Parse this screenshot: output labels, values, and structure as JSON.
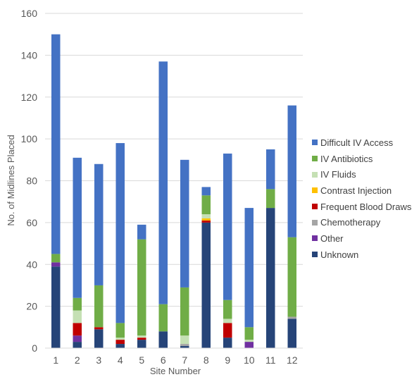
{
  "chart_data": {
    "type": "bar",
    "stacked": true,
    "title": "",
    "xlabel": "Site Number",
    "ylabel": "No. of Midlines Placed",
    "ylim": [
      0,
      160
    ],
    "yticks": [
      0,
      20,
      40,
      60,
      80,
      100,
      120,
      140,
      160
    ],
    "grid": true,
    "legend_position": "right",
    "categories": [
      "1",
      "2",
      "3",
      "4",
      "5",
      "6",
      "7",
      "8",
      "9",
      "10",
      "11",
      "12"
    ],
    "series": [
      {
        "name": "Unknown",
        "color": "#264478",
        "values": [
          39,
          3,
          9,
          2,
          4,
          8,
          1,
          60,
          5,
          0,
          67,
          14
        ]
      },
      {
        "name": "Other",
        "color": "#7030a0",
        "values": [
          2,
          3,
          0,
          0,
          0,
          0,
          0,
          0,
          0,
          3,
          0,
          0
        ]
      },
      {
        "name": "Chemotherapy",
        "color": "#a5a5a5",
        "values": [
          0,
          0,
          0,
          0,
          0,
          0,
          1,
          0,
          0,
          0,
          0,
          1
        ]
      },
      {
        "name": "Frequent Blood Draws",
        "color": "#c00000",
        "values": [
          0,
          6,
          1,
          2,
          1,
          0,
          0,
          1,
          7,
          0,
          0,
          0
        ]
      },
      {
        "name": "Contrast Injection",
        "color": "#ffc000",
        "values": [
          0,
          0,
          0,
          0,
          0,
          0,
          0,
          1,
          0,
          0,
          0,
          0
        ]
      },
      {
        "name": "IV Fluids",
        "color": "#c5e0b4",
        "values": [
          0,
          6,
          0,
          1,
          1,
          0,
          4,
          2,
          2,
          1,
          0,
          0
        ]
      },
      {
        "name": "IV Antibiotics",
        "color": "#70ad47",
        "values": [
          4,
          6,
          20,
          7,
          46,
          13,
          23,
          9,
          9,
          6,
          9,
          38
        ]
      },
      {
        "name": "Difficult IV Access",
        "color": "#4472c4",
        "values": [
          105,
          67,
          58,
          86,
          7,
          116,
          61,
          4,
          70,
          57,
          19,
          63
        ]
      }
    ],
    "legend_order": [
      "Difficult IV Access",
      "IV Antibiotics",
      "IV Fluids",
      "Contrast Injection",
      "Frequent Blood Draws",
      "Chemotherapy",
      "Other",
      "Unknown"
    ]
  }
}
